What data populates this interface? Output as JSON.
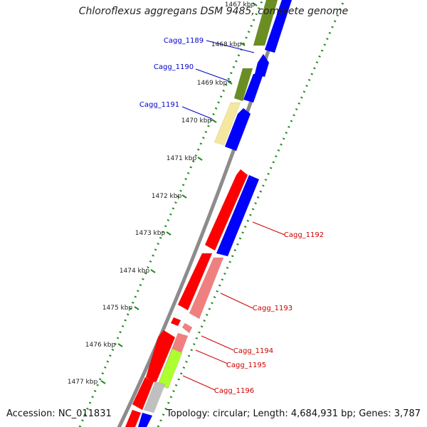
{
  "title": "Chloroflexus aggregans DSM 9485, complete genome",
  "footer": {
    "accession_label": "Accession: NC_011831",
    "topology": "Topology: circular",
    "length": "Length: 4,684,931 bp",
    "genes": "Genes: 3,787"
  },
  "colors": {
    "backbone": "#8c8c8c",
    "tick_dot": "#228b22",
    "forward_cds_red": "#ff0000",
    "forward_cds_pink": "#f08080",
    "reverse_cds_blue": "#0000ff",
    "olive": "#6b8e23",
    "pale_yellow": "#f5e6a0",
    "yellow_green": "#adff2f",
    "grey": "#c0c0c0",
    "label_blue": "#0000cc",
    "label_red": "#cc0000"
  },
  "kbp_ticks": [
    "1467 kbp",
    "1468 kbp",
    "1469 kbp",
    "1470 kbp",
    "1471 kbp",
    "1472 kbp",
    "1473 kbp",
    "1474 kbp",
    "1475 kbp",
    "1476 kbp",
    "1477 kbp"
  ],
  "gene_labels": [
    {
      "name": "Cagg_1189",
      "strand": "reverse"
    },
    {
      "name": "Cagg_1190",
      "strand": "reverse"
    },
    {
      "name": "Cagg_1191",
      "strand": "reverse"
    },
    {
      "name": "Cagg_1192",
      "strand": "forward"
    },
    {
      "name": "Cagg_1193",
      "strand": "forward"
    },
    {
      "name": "Cagg_1194",
      "strand": "forward"
    },
    {
      "name": "Cagg_1195",
      "strand": "forward"
    },
    {
      "name": "Cagg_1196",
      "strand": "forward"
    }
  ]
}
